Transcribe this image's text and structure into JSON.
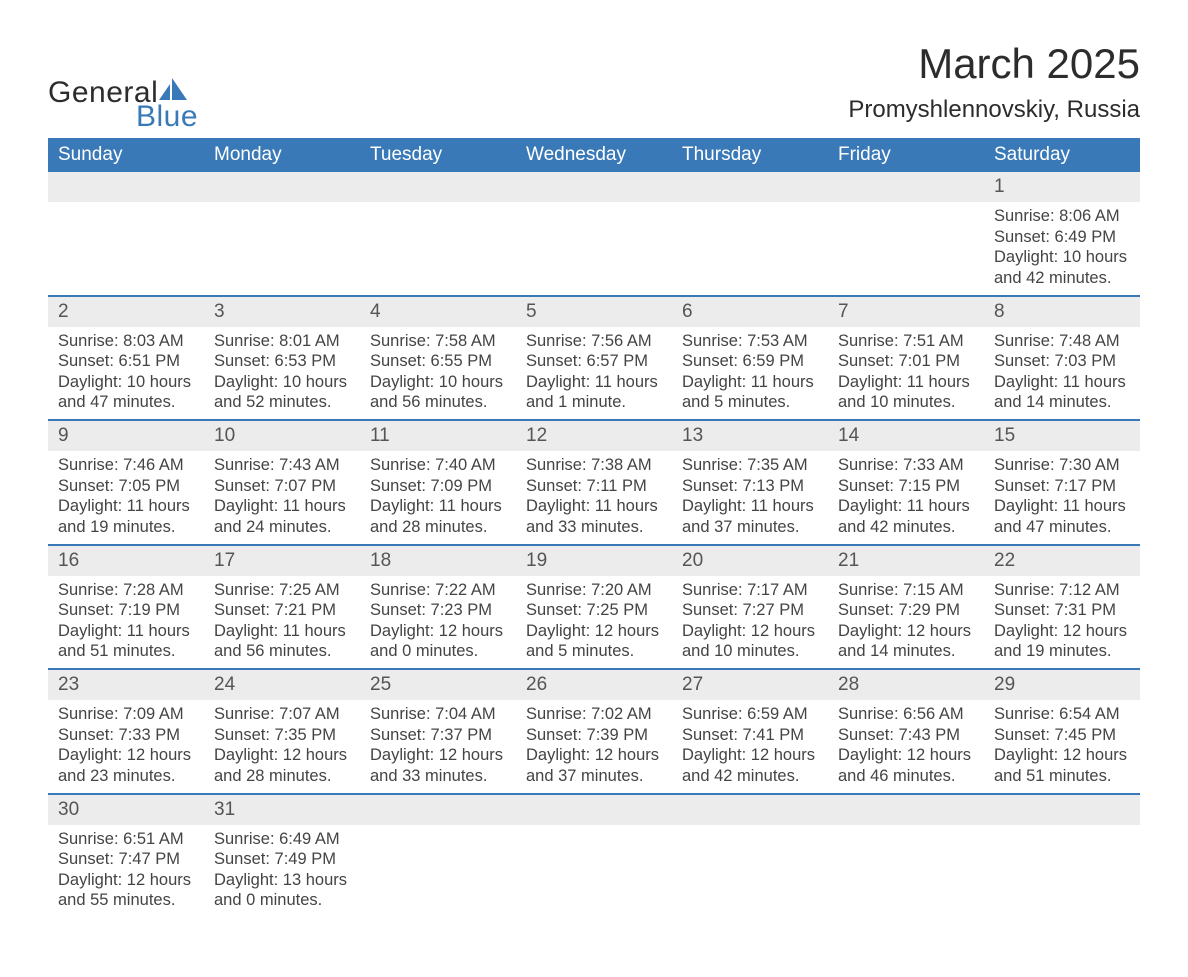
{
  "brand": {
    "text_general": "General",
    "text_blue": "Blue",
    "icon_color": "#3a79b7",
    "text_color_dark": "#2c2c2c"
  },
  "title": "March 2025",
  "location": "Promyshlennovskiy, Russia",
  "colors": {
    "header_bg": "#3a79b7",
    "header_text": "#ffffff",
    "row_divider": "#3a79b7",
    "daynum_bg": "#ececec",
    "body_text": "#444444",
    "page_bg": "#ffffff"
  },
  "fonts": {
    "title_size_pt": 42,
    "location_size_pt": 24,
    "dayheader_size_pt": 19,
    "daynum_size_pt": 19,
    "body_size_pt": 16.5,
    "family": "Arial"
  },
  "calendar": {
    "day_headers": [
      "Sunday",
      "Monday",
      "Tuesday",
      "Wednesday",
      "Thursday",
      "Friday",
      "Saturday"
    ],
    "weeks": [
      [
        null,
        null,
        null,
        null,
        null,
        null,
        {
          "num": "1",
          "sunrise": "Sunrise: 8:06 AM",
          "sunset": "Sunset: 6:49 PM",
          "dl1": "Daylight: 10 hours",
          "dl2": "and 42 minutes."
        }
      ],
      [
        {
          "num": "2",
          "sunrise": "Sunrise: 8:03 AM",
          "sunset": "Sunset: 6:51 PM",
          "dl1": "Daylight: 10 hours",
          "dl2": "and 47 minutes."
        },
        {
          "num": "3",
          "sunrise": "Sunrise: 8:01 AM",
          "sunset": "Sunset: 6:53 PM",
          "dl1": "Daylight: 10 hours",
          "dl2": "and 52 minutes."
        },
        {
          "num": "4",
          "sunrise": "Sunrise: 7:58 AM",
          "sunset": "Sunset: 6:55 PM",
          "dl1": "Daylight: 10 hours",
          "dl2": "and 56 minutes."
        },
        {
          "num": "5",
          "sunrise": "Sunrise: 7:56 AM",
          "sunset": "Sunset: 6:57 PM",
          "dl1": "Daylight: 11 hours",
          "dl2": "and 1 minute."
        },
        {
          "num": "6",
          "sunrise": "Sunrise: 7:53 AM",
          "sunset": "Sunset: 6:59 PM",
          "dl1": "Daylight: 11 hours",
          "dl2": "and 5 minutes."
        },
        {
          "num": "7",
          "sunrise": "Sunrise: 7:51 AM",
          "sunset": "Sunset: 7:01 PM",
          "dl1": "Daylight: 11 hours",
          "dl2": "and 10 minutes."
        },
        {
          "num": "8",
          "sunrise": "Sunrise: 7:48 AM",
          "sunset": "Sunset: 7:03 PM",
          "dl1": "Daylight: 11 hours",
          "dl2": "and 14 minutes."
        }
      ],
      [
        {
          "num": "9",
          "sunrise": "Sunrise: 7:46 AM",
          "sunset": "Sunset: 7:05 PM",
          "dl1": "Daylight: 11 hours",
          "dl2": "and 19 minutes."
        },
        {
          "num": "10",
          "sunrise": "Sunrise: 7:43 AM",
          "sunset": "Sunset: 7:07 PM",
          "dl1": "Daylight: 11 hours",
          "dl2": "and 24 minutes."
        },
        {
          "num": "11",
          "sunrise": "Sunrise: 7:40 AM",
          "sunset": "Sunset: 7:09 PM",
          "dl1": "Daylight: 11 hours",
          "dl2": "and 28 minutes."
        },
        {
          "num": "12",
          "sunrise": "Sunrise: 7:38 AM",
          "sunset": "Sunset: 7:11 PM",
          "dl1": "Daylight: 11 hours",
          "dl2": "and 33 minutes."
        },
        {
          "num": "13",
          "sunrise": "Sunrise: 7:35 AM",
          "sunset": "Sunset: 7:13 PM",
          "dl1": "Daylight: 11 hours",
          "dl2": "and 37 minutes."
        },
        {
          "num": "14",
          "sunrise": "Sunrise: 7:33 AM",
          "sunset": "Sunset: 7:15 PM",
          "dl1": "Daylight: 11 hours",
          "dl2": "and 42 minutes."
        },
        {
          "num": "15",
          "sunrise": "Sunrise: 7:30 AM",
          "sunset": "Sunset: 7:17 PM",
          "dl1": "Daylight: 11 hours",
          "dl2": "and 47 minutes."
        }
      ],
      [
        {
          "num": "16",
          "sunrise": "Sunrise: 7:28 AM",
          "sunset": "Sunset: 7:19 PM",
          "dl1": "Daylight: 11 hours",
          "dl2": "and 51 minutes."
        },
        {
          "num": "17",
          "sunrise": "Sunrise: 7:25 AM",
          "sunset": "Sunset: 7:21 PM",
          "dl1": "Daylight: 11 hours",
          "dl2": "and 56 minutes."
        },
        {
          "num": "18",
          "sunrise": "Sunrise: 7:22 AM",
          "sunset": "Sunset: 7:23 PM",
          "dl1": "Daylight: 12 hours",
          "dl2": "and 0 minutes."
        },
        {
          "num": "19",
          "sunrise": "Sunrise: 7:20 AM",
          "sunset": "Sunset: 7:25 PM",
          "dl1": "Daylight: 12 hours",
          "dl2": "and 5 minutes."
        },
        {
          "num": "20",
          "sunrise": "Sunrise: 7:17 AM",
          "sunset": "Sunset: 7:27 PM",
          "dl1": "Daylight: 12 hours",
          "dl2": "and 10 minutes."
        },
        {
          "num": "21",
          "sunrise": "Sunrise: 7:15 AM",
          "sunset": "Sunset: 7:29 PM",
          "dl1": "Daylight: 12 hours",
          "dl2": "and 14 minutes."
        },
        {
          "num": "22",
          "sunrise": "Sunrise: 7:12 AM",
          "sunset": "Sunset: 7:31 PM",
          "dl1": "Daylight: 12 hours",
          "dl2": "and 19 minutes."
        }
      ],
      [
        {
          "num": "23",
          "sunrise": "Sunrise: 7:09 AM",
          "sunset": "Sunset: 7:33 PM",
          "dl1": "Daylight: 12 hours",
          "dl2": "and 23 minutes."
        },
        {
          "num": "24",
          "sunrise": "Sunrise: 7:07 AM",
          "sunset": "Sunset: 7:35 PM",
          "dl1": "Daylight: 12 hours",
          "dl2": "and 28 minutes."
        },
        {
          "num": "25",
          "sunrise": "Sunrise: 7:04 AM",
          "sunset": "Sunset: 7:37 PM",
          "dl1": "Daylight: 12 hours",
          "dl2": "and 33 minutes."
        },
        {
          "num": "26",
          "sunrise": "Sunrise: 7:02 AM",
          "sunset": "Sunset: 7:39 PM",
          "dl1": "Daylight: 12 hours",
          "dl2": "and 37 minutes."
        },
        {
          "num": "27",
          "sunrise": "Sunrise: 6:59 AM",
          "sunset": "Sunset: 7:41 PM",
          "dl1": "Daylight: 12 hours",
          "dl2": "and 42 minutes."
        },
        {
          "num": "28",
          "sunrise": "Sunrise: 6:56 AM",
          "sunset": "Sunset: 7:43 PM",
          "dl1": "Daylight: 12 hours",
          "dl2": "and 46 minutes."
        },
        {
          "num": "29",
          "sunrise": "Sunrise: 6:54 AM",
          "sunset": "Sunset: 7:45 PM",
          "dl1": "Daylight: 12 hours",
          "dl2": "and 51 minutes."
        }
      ],
      [
        {
          "num": "30",
          "sunrise": "Sunrise: 6:51 AM",
          "sunset": "Sunset: 7:47 PM",
          "dl1": "Daylight: 12 hours",
          "dl2": "and 55 minutes."
        },
        {
          "num": "31",
          "sunrise": "Sunrise: 6:49 AM",
          "sunset": "Sunset: 7:49 PM",
          "dl1": "Daylight: 13 hours",
          "dl2": "and 0 minutes."
        },
        null,
        null,
        null,
        null,
        null
      ]
    ]
  }
}
